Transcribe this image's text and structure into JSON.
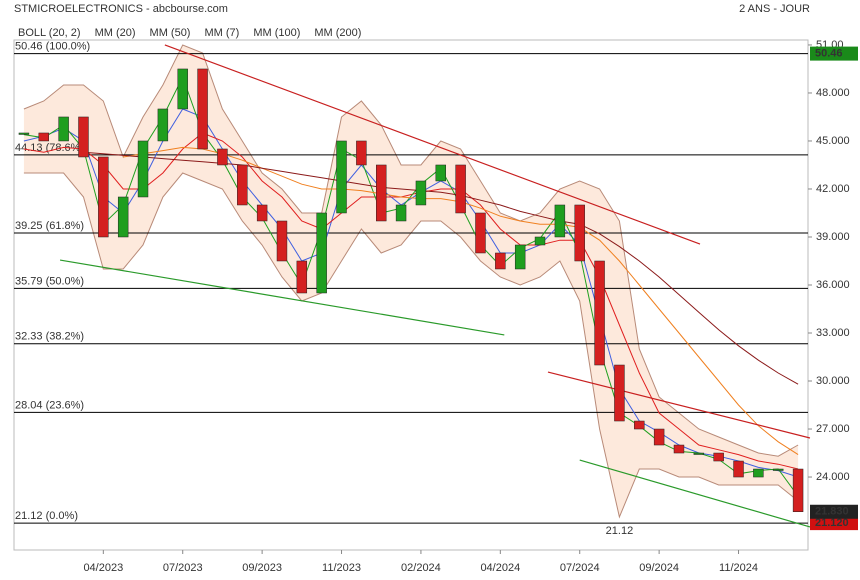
{
  "chart_data": {
    "type": "candlestick",
    "title": "STMICROELECTRONICS - abcbourse.com",
    "subtitle": "2 ANS - JOUR",
    "categories": [
      null,
      null,
      null,
      null,
      "04/2023",
      null,
      null,
      null,
      "07/2023",
      null,
      null,
      null,
      "09/2023",
      null,
      null,
      null,
      "11/2023",
      null,
      null,
      null,
      "02/2024",
      null,
      null,
      null,
      "04/2024",
      null,
      null,
      null,
      "07/2024",
      null,
      null,
      null,
      "09/2024",
      null,
      null,
      null,
      "11/2024",
      null,
      null,
      null
    ],
    "close": [
      45.5,
      45.0,
      46.5,
      44.0,
      39.0,
      41.5,
      45.0,
      47.0,
      49.5,
      44.5,
      43.5,
      41.0,
      40.0,
      37.5,
      35.5,
      40.5,
      45.0,
      43.5,
      40.0,
      41.0,
      42.5,
      43.5,
      40.5,
      38.0,
      37.0,
      38.5,
      39.0,
      41.0,
      37.5,
      31.0,
      27.5,
      27.0,
      26.0,
      25.5,
      25.5,
      25.0,
      24.0,
      24.5,
      24.5,
      21.83
    ],
    "up_color": "#1f9e1f",
    "down_color": "#d42020",
    "bollinger": {
      "name": "BOLL (20, 2)",
      "color": "#b88a78",
      "fill": "#fce3d3",
      "upper": [
        47.0,
        47.5,
        48.5,
        48.5,
        47.5,
        44.0,
        46.5,
        48.5,
        51.0,
        50.5,
        47.0,
        45.0,
        43.0,
        42.0,
        40.5,
        40.5,
        46.5,
        47.5,
        46.0,
        43.5,
        43.5,
        45.0,
        44.5,
        42.5,
        40.5,
        40.0,
        40.5,
        42.0,
        42.5,
        42.0,
        40.0,
        32.0,
        29.0,
        28.0,
        27.0,
        26.5,
        26.0,
        25.5,
        25.3,
        26.0
      ],
      "lower": [
        43.0,
        43.0,
        43.0,
        41.5,
        37.0,
        37.0,
        38.5,
        41.5,
        43.0,
        42.5,
        42.0,
        40.0,
        38.5,
        36.5,
        35.0,
        35.5,
        37.5,
        39.5,
        38.0,
        38.5,
        40.0,
        40.0,
        39.0,
        37.5,
        36.5,
        36.0,
        36.5,
        37.5,
        35.0,
        27.0,
        21.5,
        24.5,
        24.5,
        24.0,
        24.0,
        23.5,
        23.5,
        23.5,
        23.5,
        22.5
      ]
    },
    "series": [
      {
        "name": "MM (20)",
        "color": "#3f5fe0",
        "values": [
          45.0,
          45.3,
          45.8,
          45.0,
          41.5,
          40.5,
          42.5,
          45.0,
          47.0,
          46.5,
          44.5,
          42.5,
          41.0,
          39.5,
          37.5,
          38.0,
          42.0,
          43.5,
          42.0,
          41.0,
          41.8,
          42.5,
          41.8,
          40.0,
          38.0,
          38.0,
          38.5,
          39.8,
          38.5,
          34.0,
          29.5,
          27.5,
          26.8,
          26.0,
          25.5,
          25.3,
          25.0,
          24.6,
          24.4,
          24.0
        ]
      },
      {
        "name": "MM (50)",
        "color": "#e02020",
        "values": [
          44.5,
          44.3,
          44.6,
          44.5,
          43.5,
          42.0,
          42.0,
          43.0,
          44.5,
          45.5,
          45.0,
          44.0,
          42.5,
          41.5,
          40.0,
          39.5,
          40.5,
          41.5,
          41.5,
          41.5,
          41.8,
          42.0,
          42.0,
          41.0,
          39.5,
          38.5,
          38.5,
          38.8,
          38.8,
          36.5,
          33.5,
          30.5,
          28.0,
          27.0,
          26.0,
          25.7,
          25.4,
          25.0,
          24.8,
          24.5
        ]
      },
      {
        "name": "MM (7)",
        "color": "#1fa01f",
        "values": [
          45.4,
          45.2,
          46.0,
          44.5,
          39.8,
          41.0,
          44.5,
          46.5,
          49.0,
          45.5,
          43.8,
          41.5,
          40.2,
          38.0,
          36.0,
          39.5,
          44.5,
          43.8,
          40.5,
          40.8,
          42.3,
          43.3,
          41.0,
          38.5,
          37.2,
          38.3,
          38.9,
          40.6,
          38.0,
          32.0,
          28.0,
          27.2,
          26.2,
          25.6,
          25.5,
          25.1,
          24.2,
          24.4,
          24.5,
          22.8
        ]
      },
      {
        "name": "MM (100)",
        "color": "#f08020",
        "values": [
          null,
          null,
          null,
          null,
          null,
          44.0,
          44.2,
          44.4,
          44.6,
          44.5,
          44.2,
          43.8,
          43.3,
          42.8,
          42.3,
          42.0,
          42.0,
          41.9,
          41.7,
          41.5,
          41.4,
          41.4,
          41.2,
          40.8,
          40.3,
          40.0,
          39.8,
          39.8,
          39.6,
          38.8,
          37.5,
          36.0,
          34.5,
          33.0,
          31.5,
          30.0,
          28.5,
          27.2,
          26.2,
          25.4
        ]
      },
      {
        "name": "MM (200)",
        "color": "#8b1a1a",
        "values": [
          null,
          null,
          null,
          44.3,
          44.2,
          44.1,
          44.0,
          43.9,
          43.8,
          43.7,
          43.6,
          43.5,
          43.3,
          43.1,
          42.9,
          42.7,
          42.5,
          42.3,
          42.1,
          42.0,
          41.9,
          41.8,
          41.6,
          41.3,
          41.0,
          40.6,
          40.3,
          40.0,
          39.8,
          39.2,
          38.4,
          37.5,
          36.5,
          35.4,
          34.3,
          33.2,
          32.2,
          31.3,
          30.5,
          29.8
        ]
      }
    ],
    "levels": [
      {
        "value": 50.46,
        "label": "50.46  (100.0%)"
      },
      {
        "value": 44.13,
        "label": "44.13  (78.6%)"
      },
      {
        "value": 39.25,
        "label": "39.25  (61.8%)"
      },
      {
        "value": 35.79,
        "label": "35.79  (50.0%)"
      },
      {
        "value": 32.33,
        "label": "32.33  (38.2%)"
      },
      {
        "value": 28.04,
        "label": "28.04  (23.6%)"
      },
      {
        "value": 21.12,
        "label": "21.12  (0.0%)"
      }
    ],
    "trendlines": [
      {
        "color": "#c82020",
        "x": [
          7.1,
          34.06
        ],
        "y": [
          51.0,
          38.56
        ]
      },
      {
        "color": "#c82020",
        "x": [
          26.4,
          39.6
        ],
        "y": [
          30.56,
          26.44
        ]
      },
      {
        "color": "#2a9a2a",
        "x": [
          1.82,
          24.2
        ],
        "y": [
          37.56,
          32.88
        ]
      },
      {
        "color": "#2a9a2a",
        "x": [
          28.0,
          39.6
        ],
        "y": [
          25.06,
          20.88
        ]
      }
    ],
    "annotations": [
      {
        "index": 30,
        "value": 21.12,
        "label": "21.12",
        "color": "#1f9e1f"
      }
    ],
    "price_boxes": [
      {
        "value": 50.46,
        "label": "50.46",
        "color": "#1a8a1a"
      },
      {
        "value": 21.12,
        "label": "21.120",
        "color": "#d01010"
      },
      {
        "value": 21.83,
        "label": "21.830",
        "color": "#222222"
      }
    ],
    "ylim": [
      19.44,
      51.31
    ],
    "yticks": [
      {
        "value": 51,
        "label": "51.00"
      },
      {
        "value": 48,
        "label": "48.000"
      },
      {
        "value": 45,
        "label": "45.000"
      },
      {
        "value": 42,
        "label": "42.000"
      },
      {
        "value": 39,
        "label": "39.000"
      },
      {
        "value": 36,
        "label": "36.000"
      },
      {
        "value": 33,
        "label": "33.000"
      },
      {
        "value": 30,
        "label": "30.000"
      },
      {
        "value": 27,
        "label": "27.000"
      },
      {
        "value": 24,
        "label": "24.000"
      }
    ],
    "grid": false
  }
}
